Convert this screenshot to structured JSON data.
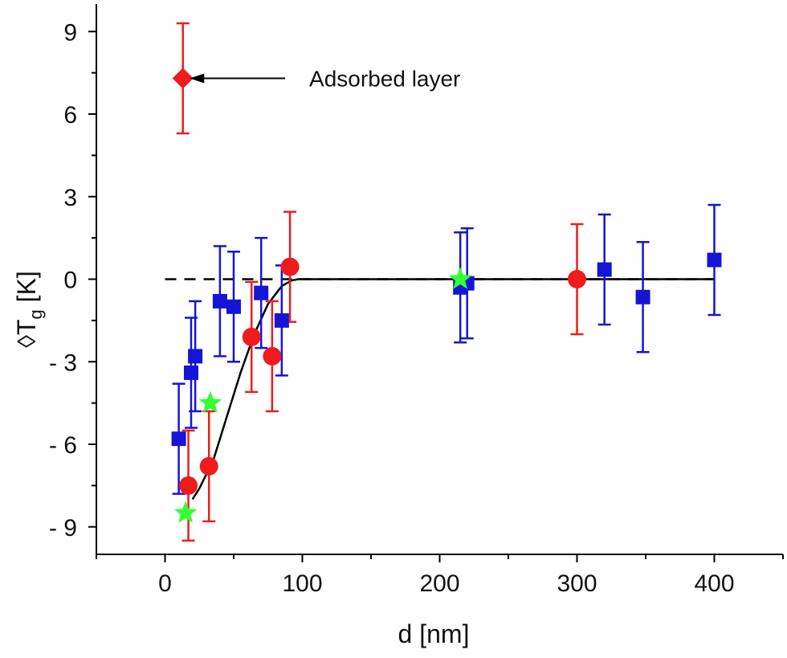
{
  "chart_data": {
    "type": "scatter",
    "title": "",
    "xlabel": "d [nm]",
    "ylabel_main": "◊T",
    "ylabel_sub": "g",
    "ylabel_unit": " [K]",
    "xlim": [
      -50,
      450
    ],
    "ylim": [
      -10,
      10
    ],
    "xticks": [
      0,
      100,
      200,
      300,
      400
    ],
    "xtick_labels": [
      "0",
      "100",
      "200",
      "300",
      "400"
    ],
    "yticks": [
      9,
      6,
      3,
      0,
      -3,
      -6,
      -9
    ],
    "ytick_labels": [
      "9",
      "6",
      "3",
      "0",
      "- 3",
      "- 6",
      "- 9"
    ],
    "grid": false,
    "legend": "none",
    "colors": {
      "red": "#ee1c1c",
      "blue": "#1515d6",
      "green": "#33ff33",
      "black": "#000000"
    },
    "series": [
      {
        "marker": "square",
        "color": "#1515d6",
        "points": [
          {
            "x": 10,
            "y": -5.8,
            "err": 2.0
          },
          {
            "x": 19,
            "y": -3.4,
            "err": 2.0
          },
          {
            "x": 22,
            "y": -2.8,
            "err": 2.0
          },
          {
            "x": 40,
            "y": -0.8,
            "err": 2.0
          },
          {
            "x": 50,
            "y": -1.0,
            "err": 2.0
          },
          {
            "x": 70,
            "y": -0.5,
            "err": 2.0
          },
          {
            "x": 85,
            "y": -1.5,
            "err": 2.0
          },
          {
            "x": 215,
            "y": -0.3,
            "err": 2.0
          },
          {
            "x": 220,
            "y": -0.15,
            "err": 2.0
          },
          {
            "x": 320,
            "y": 0.35,
            "err": 2.0
          },
          {
            "x": 348,
            "y": -0.65,
            "err": 2.0
          },
          {
            "x": 400,
            "y": 0.7,
            "err": 2.0
          }
        ]
      },
      {
        "marker": "circle",
        "color": "#ee1c1c",
        "points": [
          {
            "x": 17,
            "y": -7.5,
            "err": 2.0
          },
          {
            "x": 32,
            "y": -6.8,
            "err": 2.0
          },
          {
            "x": 63,
            "y": -2.1,
            "err": 2.0
          },
          {
            "x": 78,
            "y": -2.8,
            "err": 2.0
          },
          {
            "x": 91,
            "y": 0.45,
            "err": 2.0
          },
          {
            "x": 300,
            "y": 0.0,
            "err": 2.0
          }
        ]
      },
      {
        "marker": "diamond",
        "color": "#ee1c1c",
        "points": [
          {
            "x": 13,
            "y": 7.3,
            "err": 2.0
          }
        ]
      },
      {
        "marker": "star",
        "color": "#33ff33",
        "points": [
          {
            "x": 15,
            "y": -8.5
          },
          {
            "x": 33,
            "y": -4.5
          },
          {
            "x": 215,
            "y": 0.0
          }
        ]
      }
    ],
    "fit_curve": {
      "color": "#000000",
      "x": [
        20,
        25,
        35,
        45,
        55,
        65,
        75,
        85,
        92,
        97,
        105,
        150,
        300,
        400
      ],
      "y": [
        -8.0,
        -7.6,
        -6.6,
        -5.0,
        -3.4,
        -2.0,
        -0.9,
        -0.25,
        -0.05,
        0.0,
        0.0,
        0.0,
        0.0,
        0.0
      ]
    },
    "reference_line": {
      "y": 0,
      "x_range": [
        0,
        400
      ],
      "style": "dashed"
    },
    "annotations": [
      {
        "text": "Adsorbed layer",
        "x": 105,
        "y": 7.3,
        "arrow_to_x": 18,
        "arrow_to_y": 7.3
      }
    ]
  }
}
